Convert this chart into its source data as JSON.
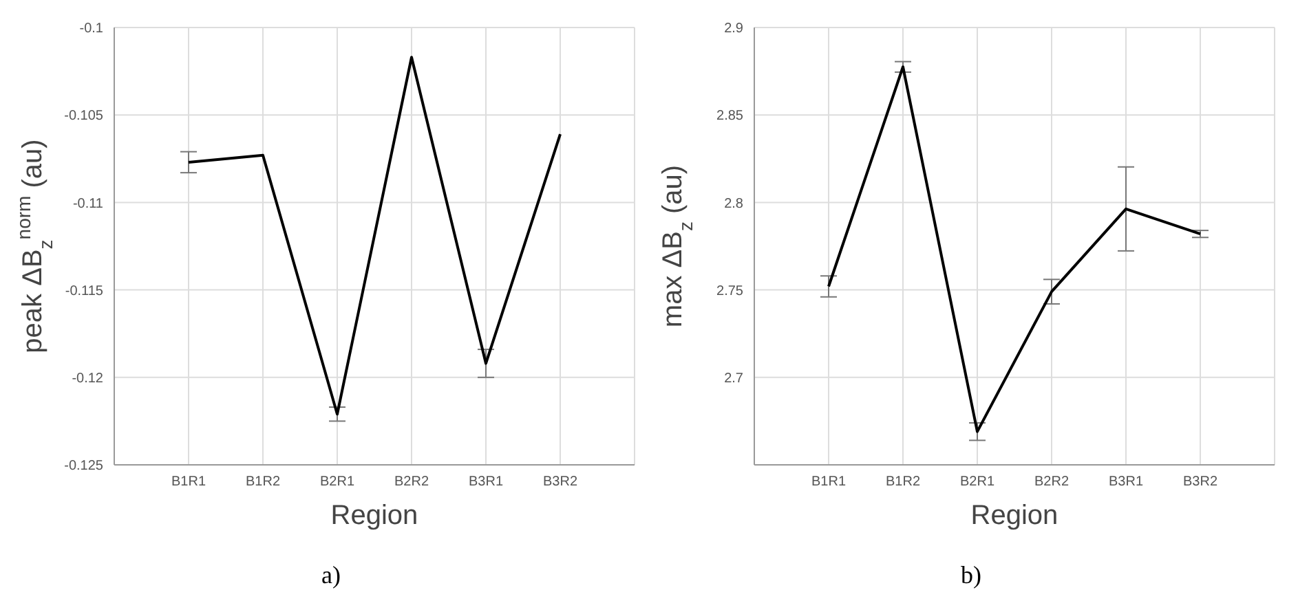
{
  "chart_data": [
    {
      "type": "line",
      "categories": [
        "B1R1",
        "B1R2",
        "B2R1",
        "B2R2",
        "B3R1",
        "B3R2"
      ],
      "series": [
        {
          "color": "#000000",
          "values": [
            -0.1077,
            -0.1073,
            -0.1221,
            -0.1017,
            -0.1192,
            -0.1061
          ],
          "errors": [
            0.0006,
            null,
            0.0004,
            null,
            0.0008,
            null
          ]
        }
      ],
      "xlabel": "Region",
      "ylabel": "peak ΔB$_{z}$$^{norm}$ (au)",
      "ylim": [
        -0.125,
        -0.1
      ],
      "yticks": [
        -0.125,
        -0.12,
        -0.115,
        -0.11,
        -0.105,
        -0.1
      ],
      "grid": true,
      "legend": false,
      "marker": "none",
      "annotations": [
        "a)"
      ]
    },
    {
      "type": "line",
      "categories": [
        "B1R1",
        "B1R2",
        "B2R1",
        "B2R2",
        "B3R1",
        "B3R2"
      ],
      "series": [
        {
          "color": "#000000",
          "values": [
            2.752,
            2.8775,
            2.669,
            2.749,
            2.7963,
            2.782
          ],
          "errors": [
            0.006,
            0.003,
            0.005,
            0.007,
            0.024,
            0.002
          ]
        }
      ],
      "xlabel": "Region",
      "ylabel": "max ΔB$_{z}$ (au)",
      "ylim": [
        2.65,
        2.9
      ],
      "yticks": [
        2.7,
        2.75,
        2.8,
        2.85,
        2.9
      ],
      "grid": true,
      "legend": false,
      "marker": "none",
      "annotations": [
        "b)"
      ]
    }
  ]
}
